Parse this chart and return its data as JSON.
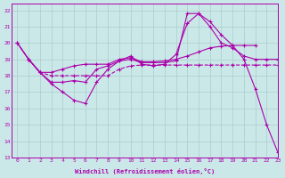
{
  "bg_color": "#cbe8e8",
  "grid_color": "#aacccc",
  "line_color": "#aa00aa",
  "xlabel": "Windchill (Refroidissement éolien,°C)",
  "xlim": [
    -0.5,
    23
  ],
  "ylim": [
    13,
    22.4
  ],
  "yticks": [
    13,
    14,
    15,
    16,
    17,
    18,
    19,
    20,
    21,
    22
  ],
  "xticks": [
    0,
    1,
    2,
    3,
    4,
    5,
    6,
    7,
    8,
    9,
    10,
    11,
    12,
    13,
    14,
    15,
    16,
    17,
    18,
    19,
    20,
    21,
    22,
    23
  ],
  "lines": [
    {
      "x": [
        0,
        1,
        2,
        3,
        4,
        5,
        6,
        7,
        8,
        9,
        10,
        11,
        12,
        13,
        14,
        15,
        16,
        17,
        18,
        19,
        20,
        21,
        22,
        23
      ],
      "y": [
        20.0,
        19.0,
        18.2,
        17.5,
        17.0,
        16.5,
        16.3,
        17.6,
        18.4,
        18.9,
        19.2,
        18.7,
        18.6,
        18.7,
        19.3,
        21.2,
        21.8,
        21.3,
        20.5,
        19.85,
        19.0,
        17.2,
        15.0,
        13.3
      ],
      "dashed": false
    },
    {
      "x": [
        1,
        2,
        3,
        4,
        5,
        6,
        7,
        8,
        9,
        10,
        11,
        12,
        13,
        14,
        15,
        16,
        17,
        18,
        19,
        20,
        21,
        22,
        23
      ],
      "y": [
        19.0,
        18.2,
        17.6,
        17.6,
        17.7,
        17.6,
        18.4,
        18.6,
        18.9,
        19.0,
        18.8,
        18.8,
        18.8,
        18.9,
        21.8,
        21.8,
        21.0,
        20.0,
        19.7,
        19.2,
        19.0,
        19.0,
        19.0
      ],
      "dashed": false
    },
    {
      "x": [
        0,
        1,
        2,
        3,
        4,
        5,
        6,
        7,
        8,
        9,
        10,
        11,
        12,
        13,
        14,
        15,
        16,
        17,
        18,
        19,
        20,
        21
      ],
      "y": [
        20.0,
        19.0,
        18.2,
        18.2,
        18.4,
        18.6,
        18.7,
        18.7,
        18.7,
        19.0,
        19.1,
        18.85,
        18.85,
        18.9,
        19.0,
        19.2,
        19.45,
        19.7,
        19.8,
        19.85,
        19.85,
        19.85
      ],
      "dashed": false
    },
    {
      "x": [
        0,
        1,
        2,
        3,
        4,
        5,
        6,
        7,
        8,
        9,
        10,
        11,
        12,
        13,
        14,
        15,
        16,
        17,
        18,
        19,
        20,
        21,
        22,
        23
      ],
      "y": [
        20.0,
        19.0,
        18.2,
        18.0,
        18.0,
        18.0,
        18.0,
        18.0,
        18.0,
        18.4,
        18.6,
        18.65,
        18.65,
        18.65,
        18.65,
        18.65,
        18.65,
        18.65,
        18.65,
        18.65,
        18.65,
        18.65,
        18.65,
        18.65
      ],
      "dashed": true
    }
  ]
}
